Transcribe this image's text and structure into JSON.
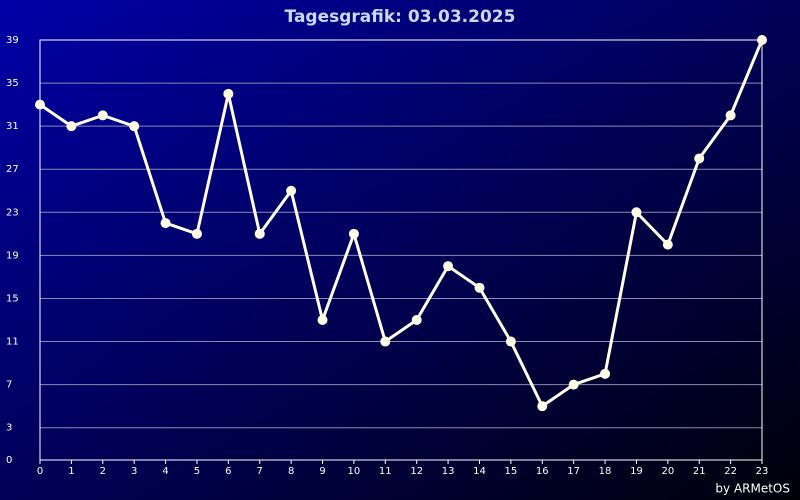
{
  "chart_data": {
    "type": "line",
    "title": "Tagesgrafik: 03.03.2025",
    "x": [
      0,
      1,
      2,
      3,
      4,
      5,
      6,
      7,
      8,
      9,
      10,
      11,
      12,
      13,
      14,
      15,
      16,
      17,
      18,
      19,
      20,
      21,
      22,
      23
    ],
    "values": [
      33,
      31,
      32,
      31,
      22,
      21,
      34,
      21,
      25,
      13,
      21,
      11,
      13,
      18,
      16,
      11,
      5,
      7,
      8,
      23,
      20,
      28,
      32,
      39
    ],
    "color": "#fffde8",
    "xlim": [
      0,
      23
    ],
    "xticks": [
      0,
      1,
      2,
      3,
      4,
      5,
      6,
      7,
      8,
      9,
      10,
      11,
      12,
      13,
      14,
      15,
      16,
      17,
      18,
      19,
      20,
      21,
      22,
      23
    ],
    "ylim": [
      0,
      39
    ],
    "yticks": [
      0,
      3,
      7,
      11,
      15,
      19,
      23,
      27,
      31,
      35,
      39
    ],
    "grid": true,
    "credit": "by ARMetOS"
  }
}
